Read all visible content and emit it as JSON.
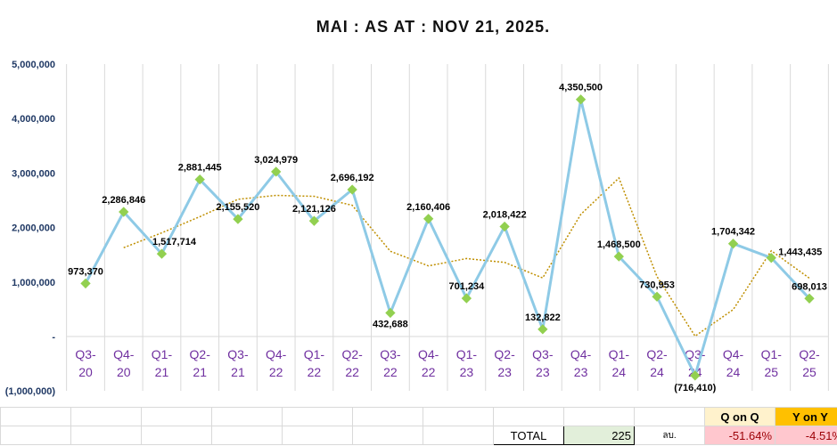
{
  "chart_data": {
    "type": "line",
    "title": "MAI : AS AT : NOV 21, 2025.",
    "categories": [
      "Q3-20",
      "Q4-20",
      "Q1-21",
      "Q2-21",
      "Q3-21",
      "Q4-22",
      "Q1-22",
      "Q2-22",
      "Q3-22",
      "Q4-22",
      "Q1-23",
      "Q2-23",
      "Q3-23",
      "Q4-23",
      "Q1-24",
      "Q2-24",
      "Q3-24",
      "Q4-24",
      "Q1-25",
      "Q2-25"
    ],
    "values": [
      973370,
      2286846,
      1517714,
      2881445,
      2155520,
      3024979,
      2121126,
      2696192,
      432688,
      2160406,
      701234,
      2018422,
      132822,
      4350500,
      1468500,
      730953,
      -716410,
      1704342,
      1443435,
      698013
    ],
    "data_labels": [
      "973,370",
      "2,286,846",
      "1,517,714",
      "2,881,445",
      "2,155,520",
      "3,024,979",
      "2,121,126",
      "2,696,192",
      "432,688",
      "2,160,406",
      "701,234",
      "2,018,422",
      "132,822",
      "4,350,500",
      "1,468,500",
      "730,953",
      "(716,410)",
      "1,704,342",
      "1,443,435",
      "698,013"
    ],
    "trendline": "2-period moving average",
    "ylim": [
      -1000000,
      5000000
    ],
    "yticks": [
      {
        "value": 5000000,
        "label": "5,000,000"
      },
      {
        "value": 4000000,
        "label": "4,000,000"
      },
      {
        "value": 3000000,
        "label": "3,000,000"
      },
      {
        "value": 2000000,
        "label": "2,000,000"
      },
      {
        "value": 1000000,
        "label": "1,000,000"
      },
      {
        "value": 0,
        "label": "-"
      },
      {
        "value": -1000000,
        "label": "(1,000,000)"
      }
    ],
    "colors": {
      "line": "#8ecae6",
      "marker": "#92d050",
      "trend": "#bf8f00"
    }
  },
  "table": {
    "total_label": "TOTAL",
    "total_value": "225",
    "unit": "ลบ.",
    "qoq_header": "Q on Q",
    "yoy_header": "Y on Y",
    "qoq_value": "-51.64%",
    "yoy_value": "-4.51%"
  }
}
